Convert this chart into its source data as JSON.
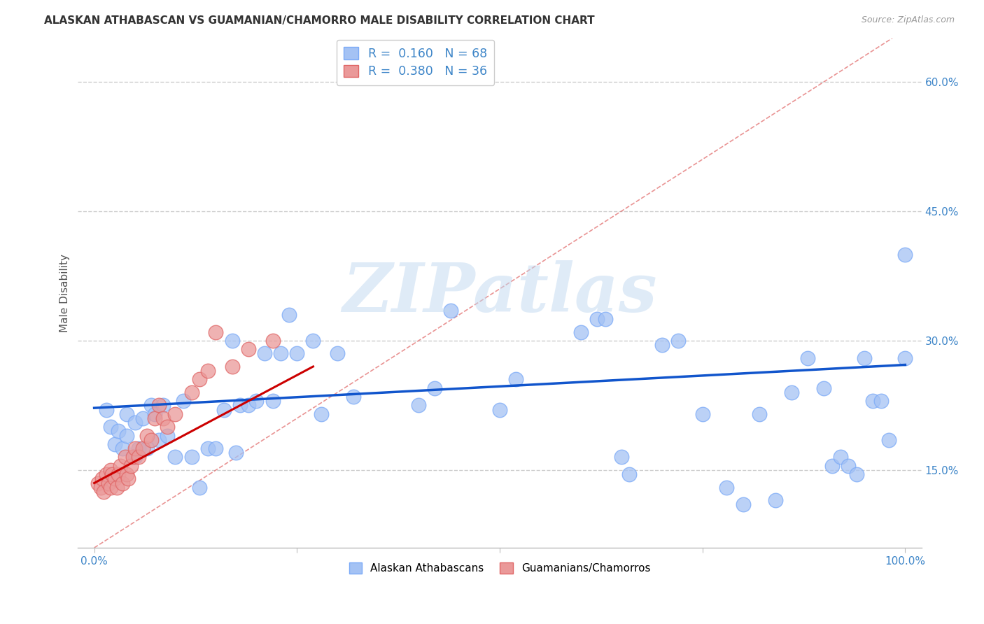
{
  "title": "ALASKAN ATHABASCAN VS GUAMANIAN/CHAMORRO MALE DISABILITY CORRELATION CHART",
  "source": "Source: ZipAtlas.com",
  "ylabel": "Male Disability",
  "xlim": [
    -0.02,
    1.02
  ],
  "ylim": [
    0.06,
    0.65
  ],
  "yticks": [
    0.15,
    0.3,
    0.45,
    0.6
  ],
  "ytick_labels": [
    "15.0%",
    "30.0%",
    "45.0%",
    "60.0%"
  ],
  "blue_color": "#a4c2f4",
  "pink_color": "#ea9999",
  "blue_line_color": "#1155cc",
  "pink_line_color": "#cc0000",
  "diagonal_color": "#e06666",
  "R_blue": 0.16,
  "N_blue": 68,
  "R_pink": 0.38,
  "N_pink": 36,
  "legend_label_blue": "Alaskan Athabascans",
  "legend_label_pink": "Guamanians/Chamorros",
  "blue_scatter_x": [
    0.015,
    0.02,
    0.025,
    0.03,
    0.035,
    0.04,
    0.04,
    0.05,
    0.05,
    0.055,
    0.06,
    0.065,
    0.07,
    0.075,
    0.08,
    0.085,
    0.09,
    0.1,
    0.11,
    0.12,
    0.13,
    0.14,
    0.15,
    0.16,
    0.17,
    0.175,
    0.18,
    0.19,
    0.2,
    0.21,
    0.22,
    0.23,
    0.24,
    0.25,
    0.27,
    0.28,
    0.3,
    0.32,
    0.4,
    0.42,
    0.44,
    0.5,
    0.52,
    0.6,
    0.62,
    0.63,
    0.65,
    0.66,
    0.7,
    0.72,
    0.75,
    0.78,
    0.8,
    0.82,
    0.84,
    0.86,
    0.88,
    0.9,
    0.91,
    0.92,
    0.93,
    0.94,
    0.95,
    0.96,
    0.97,
    0.98,
    1.0,
    1.0
  ],
  "blue_scatter_y": [
    0.22,
    0.2,
    0.18,
    0.195,
    0.175,
    0.215,
    0.19,
    0.165,
    0.205,
    0.175,
    0.21,
    0.175,
    0.225,
    0.215,
    0.185,
    0.225,
    0.19,
    0.165,
    0.23,
    0.165,
    0.13,
    0.175,
    0.175,
    0.22,
    0.3,
    0.17,
    0.225,
    0.225,
    0.23,
    0.285,
    0.23,
    0.285,
    0.33,
    0.285,
    0.3,
    0.215,
    0.285,
    0.235,
    0.225,
    0.245,
    0.335,
    0.22,
    0.255,
    0.31,
    0.325,
    0.325,
    0.165,
    0.145,
    0.295,
    0.3,
    0.215,
    0.13,
    0.11,
    0.215,
    0.115,
    0.24,
    0.28,
    0.245,
    0.155,
    0.165,
    0.155,
    0.145,
    0.28,
    0.23,
    0.23,
    0.185,
    0.28,
    0.4
  ],
  "pink_scatter_x": [
    0.005,
    0.008,
    0.01,
    0.012,
    0.015,
    0.018,
    0.02,
    0.02,
    0.022,
    0.025,
    0.028,
    0.03,
    0.032,
    0.035,
    0.038,
    0.04,
    0.042,
    0.045,
    0.048,
    0.05,
    0.055,
    0.06,
    0.065,
    0.07,
    0.075,
    0.08,
    0.085,
    0.09,
    0.1,
    0.12,
    0.13,
    0.14,
    0.15,
    0.17,
    0.19,
    0.22
  ],
  "pink_scatter_y": [
    0.135,
    0.13,
    0.14,
    0.125,
    0.145,
    0.135,
    0.13,
    0.15,
    0.145,
    0.14,
    0.13,
    0.145,
    0.155,
    0.135,
    0.165,
    0.145,
    0.14,
    0.155,
    0.165,
    0.175,
    0.165,
    0.175,
    0.19,
    0.185,
    0.21,
    0.225,
    0.21,
    0.2,
    0.215,
    0.24,
    0.255,
    0.265,
    0.31,
    0.27,
    0.29,
    0.3
  ],
  "watermark": "ZIPatlas",
  "background_color": "#ffffff",
  "grid_color": "#cccccc"
}
